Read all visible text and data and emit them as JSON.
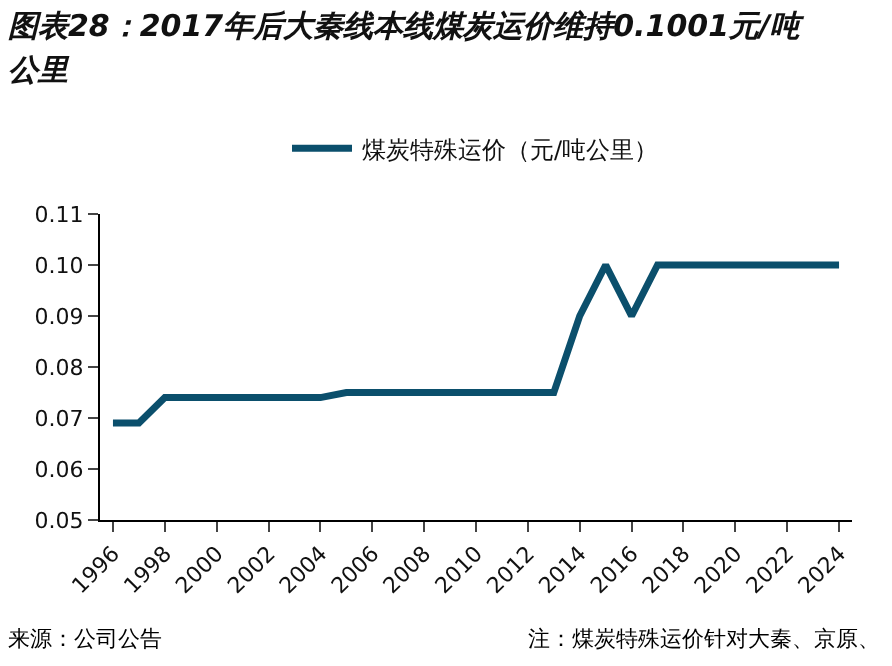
{
  "chart_data": {
    "type": "line",
    "title": "图表28：2017年后大秦线本线煤炭运价维持0.1001元/吨公里",
    "categories": [
      "1996",
      null,
      "1998",
      null,
      "2000",
      null,
      "2002",
      null,
      "2004",
      null,
      "2006",
      null,
      "2008",
      null,
      "2010",
      null,
      "2012",
      null,
      "2014",
      null,
      "2016",
      null,
      "2018",
      null,
      "2020",
      null,
      "2022",
      null,
      "2024"
    ],
    "series": [
      {
        "name": "煤炭特殊运价（元/吨公里）",
        "color": "#0b4f6c",
        "values": [
          0.069,
          0.069,
          0.074,
          0.074,
          0.074,
          0.074,
          0.074,
          0.074,
          0.074,
          0.075,
          0.075,
          0.075,
          0.075,
          0.075,
          0.075,
          0.075,
          0.075,
          0.075,
          0.09,
          0.1,
          0.09,
          0.1,
          0.1,
          0.1,
          0.1,
          0.1,
          0.1,
          0.1,
          0.1
        ]
      }
    ],
    "ylim": [
      0.05,
      0.11
    ],
    "yticks": [
      0.05,
      0.06,
      0.07,
      0.08,
      0.09,
      {
        "value": 0.1,
        "label": "0.10"
      },
      0.11
    ],
    "annotations": [
      "来源：公司公告",
      "注：煤炭特殊运价针对大秦、京原、"
    ],
    "legend": "top",
    "grid": false,
    "marker": "none",
    "line_style": "solid"
  }
}
